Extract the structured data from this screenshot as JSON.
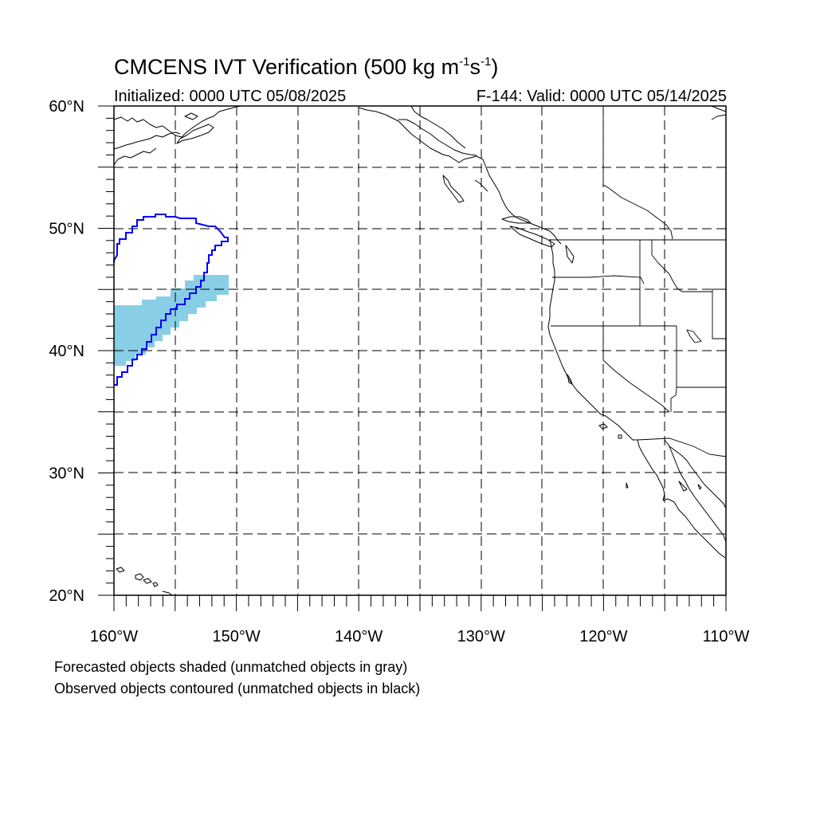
{
  "title": {
    "prefix": "CMCENS IVT Verification (500 kg m",
    "exp1": "-1",
    "middle": "s",
    "exp2": "-1",
    "suffix": ")"
  },
  "subtitle": {
    "initialized": "Initialized: 0000 UTC 05/08/2025",
    "valid": "F-144: Valid: 0000 UTC 05/14/2025"
  },
  "map": {
    "lon_range": [
      -160,
      -110
    ],
    "lat_range": [
      20,
      60
    ],
    "grid_lons": [
      -155,
      -150,
      -145,
      -140,
      -135,
      -130,
      -125,
      -120,
      -115
    ],
    "grid_lats": [
      25,
      30,
      35,
      40,
      45,
      50,
      55
    ],
    "lon_labels": [
      {
        "lon": -160,
        "text": "160°W"
      },
      {
        "lon": -150,
        "text": "150°W"
      },
      {
        "lon": -140,
        "text": "140°W"
      },
      {
        "lon": -130,
        "text": "130°W"
      },
      {
        "lon": -120,
        "text": "120°W"
      },
      {
        "lon": -110,
        "text": "110°W"
      }
    ],
    "lat_labels": [
      {
        "lat": 20,
        "text": "20°N"
      },
      {
        "lat": 30,
        "text": "30°N"
      },
      {
        "lat": 40,
        "text": "40°N"
      },
      {
        "lat": 50,
        "text": "50°N"
      },
      {
        "lat": 60,
        "text": "60°N"
      }
    ],
    "forecast_object_color": "#87CEE6",
    "observed_object_color": "#0000FF"
  },
  "footer": {
    "line1": "Forecasted objects shaded (unmatched objects in gray)",
    "line2": "Observed objects contoured (unmatched objects in black)"
  }
}
